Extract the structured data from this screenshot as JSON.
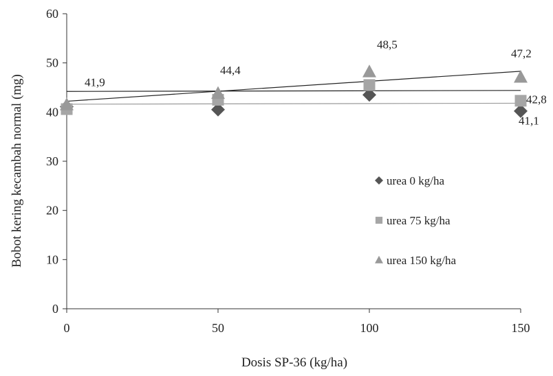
{
  "chart_data": {
    "type": "scatter",
    "xlabel": "Dosis SP-36 (kg/ha)",
    "ylabel": "Bobot kering kecambah normal (mg)",
    "xlim": [
      0,
      150
    ],
    "ylim": [
      0,
      60
    ],
    "xticks": [
      "0",
      "50",
      "100",
      "150"
    ],
    "yticks": [
      "0",
      "10",
      "20",
      "30",
      "40",
      "50",
      "60"
    ],
    "grid": false,
    "legend_position": "center-right",
    "series": [
      {
        "name": "urea 0 kg/ha",
        "marker": "diamond",
        "color": "#555555",
        "x": [
          0,
          50,
          100,
          150
        ],
        "y": [
          41.1,
          40.5,
          43.5,
          40.2
        ],
        "trend": [
          41.6,
          41.8
        ]
      },
      {
        "name": "urea 75 kg/ha",
        "marker": "square",
        "color": "#a6a6a6",
        "x": [
          0,
          50,
          100,
          150
        ],
        "y": [
          40.6,
          42.5,
          45.5,
          42.3
        ],
        "trend": [
          44.2,
          44.4
        ]
      },
      {
        "name": "urea 150 kg/ha",
        "marker": "triangle",
        "color": "#999999",
        "x": [
          0,
          50,
          100,
          150
        ],
        "y": [
          41.5,
          43.8,
          48.2,
          47.1
        ],
        "trend": [
          42.2,
          48.3
        ]
      }
    ],
    "annotations": [
      {
        "text": "41,9",
        "x": 0,
        "y": 41.9
      },
      {
        "text": "44,4",
        "x": 50,
        "y": 44.4
      },
      {
        "text": "48,5",
        "x": 100,
        "y": 48.5
      },
      {
        "text": "47,2",
        "x": 150,
        "y": 47.2
      },
      {
        "text": "42,8",
        "x": 150,
        "y": 42.8
      },
      {
        "text": "41,1",
        "x": 150,
        "y": 41.1
      }
    ]
  }
}
